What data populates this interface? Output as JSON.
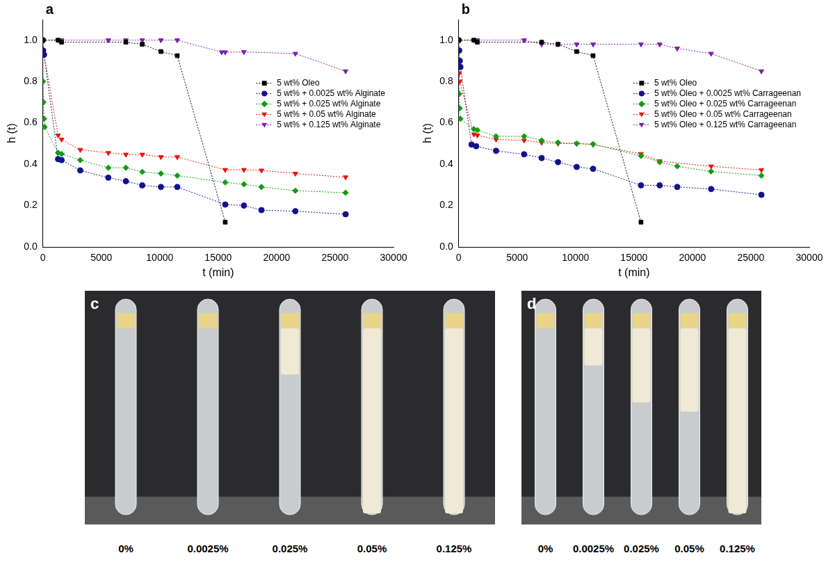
{
  "chart_data": [
    {
      "type": "line",
      "label": "a",
      "x_label": "t (min)",
      "y_label": "h (t)",
      "xlim": [
        0,
        30000
      ],
      "xticks": [
        0,
        5000,
        10000,
        15000,
        20000,
        25000,
        30000
      ],
      "ylim": [
        0,
        1.1
      ],
      "yticks": [
        {
          "value": 0,
          "label": "0.0"
        },
        0.2,
        0.4,
        0.6,
        0.8,
        {
          "value": 1,
          "label": "1.0"
        }
      ],
      "grid": false,
      "legend": "right",
      "series": [
        {
          "name": "5 wt% Oleo",
          "color": "#000000",
          "marker": "square",
          "line_style": "dotted",
          "x": [
            0,
            1300,
            1600,
            7100,
            8500,
            10100,
            11500,
            15600
          ],
          "values": [
            1.0,
            1.0,
            0.99,
            0.99,
            0.98,
            0.945,
            0.925,
            0.12
          ]
        },
        {
          "name": "5 wt% + 0.0025 wt% Alginate",
          "color": "#12128f",
          "marker": "circle",
          "line_style": "dotted",
          "x": [
            0,
            20,
            100,
            1300,
            1600,
            3200,
            5600,
            7100,
            8500,
            10100,
            11500,
            15600,
            17200,
            18700,
            21600,
            25900
          ],
          "values": [
            1.0,
            0.95,
            0.93,
            0.425,
            0.42,
            0.37,
            0.335,
            0.318,
            0.298,
            0.29,
            0.29,
            0.205,
            0.2,
            0.178,
            0.173,
            0.158
          ]
        },
        {
          "name": "5 wt% + 0.025 wt% Alginate",
          "color": "#109c10",
          "marker": "diamond",
          "line_style": "dotted",
          "x": [
            0,
            20,
            50,
            100,
            150,
            1300,
            1600,
            3200,
            5600,
            7100,
            8500,
            10100,
            11500,
            15600,
            17200,
            18700,
            21600,
            25900
          ],
          "values": [
            1.0,
            0.8,
            0.7,
            0.62,
            0.58,
            0.455,
            0.45,
            0.42,
            0.383,
            0.383,
            0.363,
            0.355,
            0.345,
            0.312,
            0.303,
            0.29,
            0.272,
            0.262
          ]
        },
        {
          "name": "5 wt% + 0.05 wt% Alginate",
          "color": "#e8150f",
          "marker": "triangle-down",
          "line_style": "dotted",
          "x": [
            0,
            50,
            100,
            1300,
            1600,
            3200,
            5600,
            7100,
            8500,
            10100,
            11500,
            15600,
            17200,
            18700,
            21600,
            25900
          ],
          "values": [
            1.0,
            0.95,
            0.93,
            0.54,
            0.52,
            0.47,
            0.455,
            0.447,
            0.447,
            0.435,
            0.435,
            0.373,
            0.373,
            0.37,
            0.355,
            0.337
          ]
        },
        {
          "name": "5 wt% + 0.125 wt% Alginate",
          "color": "#7e1fb0",
          "marker": "triangle-down",
          "line_style": "dotted",
          "x": [
            0,
            1300,
            1600,
            5600,
            7100,
            8500,
            10100,
            11500,
            15300,
            15600,
            17200,
            21600,
            25900
          ],
          "values": [
            1.0,
            1.0,
            1.0,
            1.0,
            1.0,
            1.0,
            1.0,
            1.0,
            0.942,
            0.942,
            0.943,
            0.935,
            0.85
          ]
        }
      ]
    },
    {
      "type": "line",
      "label": "b",
      "x_label": "t (min)",
      "y_label": "h (t)",
      "xlim": [
        0,
        30000
      ],
      "xticks": [
        0,
        5000,
        10000,
        15000,
        20000,
        25000,
        30000
      ],
      "ylim": [
        0,
        1.1
      ],
      "yticks": [
        {
          "value": 0,
          "label": "0.0"
        },
        0.2,
        0.4,
        0.6,
        0.8,
        {
          "value": 1,
          "label": "1.0"
        }
      ],
      "grid": false,
      "legend": "right",
      "series": [
        {
          "name": "5 wt% Oleo",
          "color": "#000000",
          "marker": "square",
          "line_style": "dotted",
          "x": [
            0,
            1300,
            1600,
            7100,
            8500,
            10100,
            11500,
            15600
          ],
          "values": [
            1.0,
            1.0,
            0.99,
            0.99,
            0.98,
            0.945,
            0.925,
            0.12
          ]
        },
        {
          "name": "5 wt% Oleo + 0.0025 wt% Carrageenan",
          "color": "#12128f",
          "marker": "circle",
          "line_style": "dotted",
          "x": [
            0,
            50,
            100,
            150,
            1100,
            1500,
            3200,
            5600,
            7100,
            8500,
            10100,
            11500,
            15600,
            17200,
            18700,
            21600,
            25900
          ],
          "values": [
            1.0,
            0.95,
            0.9,
            0.87,
            0.495,
            0.487,
            0.465,
            0.448,
            0.43,
            0.41,
            0.387,
            0.378,
            0.298,
            0.298,
            0.29,
            0.28,
            0.252
          ]
        },
        {
          "name": "5 wt% Oleo + 0.025 wt% Carrageenan",
          "color": "#109c10",
          "marker": "diamond",
          "line_style": "dotted",
          "x": [
            0,
            50,
            100,
            150,
            1300,
            1600,
            3200,
            5600,
            7100,
            8500,
            10100,
            11500,
            15600,
            17200,
            18700,
            21600,
            25900
          ],
          "values": [
            1.0,
            0.74,
            0.67,
            0.62,
            0.57,
            0.565,
            0.535,
            0.535,
            0.515,
            0.505,
            0.5,
            0.497,
            0.44,
            0.41,
            0.39,
            0.365,
            0.345
          ]
        },
        {
          "name": "5 wt% Oleo + 0.05 wt% Carrageenan",
          "color": "#e8150f",
          "marker": "triangle-down",
          "line_style": "dotted",
          "x": [
            0,
            50,
            100,
            1300,
            1600,
            3200,
            5600,
            7100,
            8500,
            10100,
            11500,
            15600,
            17200,
            21600,
            25900
          ],
          "values": [
            1.0,
            0.84,
            0.8,
            0.545,
            0.54,
            0.52,
            0.515,
            0.505,
            0.5,
            0.5,
            0.495,
            0.45,
            0.415,
            0.39,
            0.372
          ]
        },
        {
          "name": "5 wt% Oleo + 0.125 wt% Carrageenan",
          "color": "#7e1fb0",
          "marker": "triangle-down",
          "line_style": "dotted",
          "x": [
            0,
            1300,
            1600,
            5600,
            7100,
            8500,
            10100,
            11500,
            15600,
            17200,
            18700,
            21600,
            25900
          ],
          "values": [
            1.0,
            1.0,
            1.0,
            1.0,
            0.98,
            0.98,
            0.98,
            0.98,
            0.98,
            0.98,
            0.96,
            0.935,
            0.85
          ]
        }
      ]
    }
  ],
  "photos": [
    {
      "label": "c",
      "tube_labels": [
        "0%",
        "0.0025%",
        "0.025%",
        "0.05%",
        "0.125%"
      ]
    },
    {
      "label": "d",
      "tube_labels": [
        "0%",
        "0.0025%",
        "0.025%",
        "0.05%",
        "0.125%"
      ]
    }
  ]
}
